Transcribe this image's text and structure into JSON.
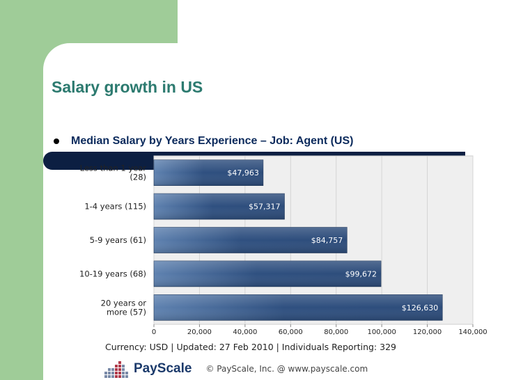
{
  "slide": {
    "title": "Salary growth in US",
    "bullet": "Median Salary by Years Experience – Job:  Agent (US)"
  },
  "chart_data": {
    "type": "bar",
    "orientation": "horizontal",
    "categories": [
      [
        "Less than 1 year",
        "(28)"
      ],
      [
        "1-4 years (115)"
      ],
      [
        "5-9 years (61)"
      ],
      [
        "10-19 years (68)"
      ],
      [
        "20 years or",
        "more (57)"
      ]
    ],
    "values": [
      47963,
      57317,
      84757,
      99672,
      126630
    ],
    "value_labels": [
      "$47,963",
      "$57,317",
      "$84,757",
      "$99,672",
      "$126,630"
    ],
    "xlim": [
      0,
      140000
    ],
    "ticks": [
      "0",
      "20,000",
      "40,000",
      "60,000",
      "80,000",
      "100,000",
      "120,000",
      "140,000"
    ],
    "grid": true,
    "bar_color": "#2d4c7a"
  },
  "footer": {
    "info": "Currency: USD  |  Updated: 27 Feb 2010  |  Individuals Reporting: 329",
    "brand": "PayScale",
    "copyright": "© PayScale, Inc. @ www.payscale.com"
  }
}
